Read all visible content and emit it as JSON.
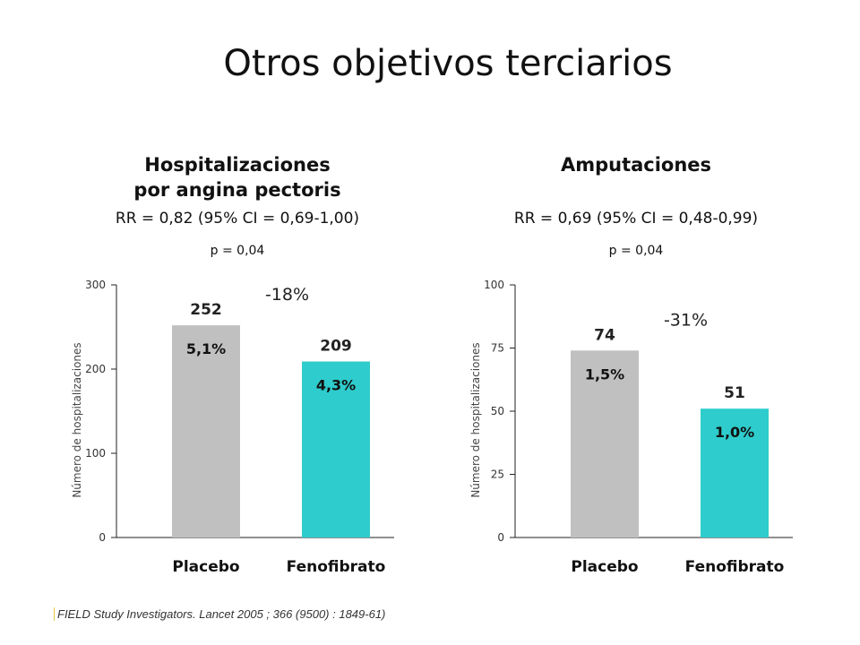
{
  "title": "Otros objetivos terciarios",
  "footnote": "FIELD Study Investigators. Lancet 2005 ; 366 (9500) : 1849-61)",
  "colors": {
    "placebo": "#c0c0c0",
    "fenofibrato": "#2ecccc",
    "axis": "#222222"
  },
  "chart_data": [
    {
      "type": "bar",
      "title": "Hospitalizaciones\npor angina pectoris",
      "title_lines": [
        "Hospitalizaciones",
        "por angina pectoris"
      ],
      "rr": "RR = 0,82 (95% CI = 0,69-1,00)",
      "p": "p = 0,04",
      "ylabel": "Número de hospitalizaciones",
      "ylim": [
        0,
        300
      ],
      "yticks": [
        0,
        100,
        200,
        300
      ],
      "categories": [
        "Placebo",
        "Fenofibrato"
      ],
      "values": [
        252,
        209
      ],
      "value_labels": [
        "252",
        "209"
      ],
      "percent_labels": [
        "5,1%",
        "4,3%"
      ],
      "difference_label": "-18%"
    },
    {
      "type": "bar",
      "title": "Amputaciones",
      "title_lines": [
        "Amputaciones"
      ],
      "rr": "RR = 0,69 (95% CI = 0,48-0,99)",
      "p": "p = 0,04",
      "ylabel": "Número de hospitalizaciones",
      "ylim": [
        0,
        100
      ],
      "yticks": [
        0,
        25,
        50,
        75,
        100
      ],
      "categories": [
        "Placebo",
        "Fenofibrato"
      ],
      "values": [
        74,
        51
      ],
      "value_labels": [
        "74",
        "51"
      ],
      "percent_labels": [
        "1,5%",
        "1,0%"
      ],
      "difference_label": "-31%"
    }
  ]
}
